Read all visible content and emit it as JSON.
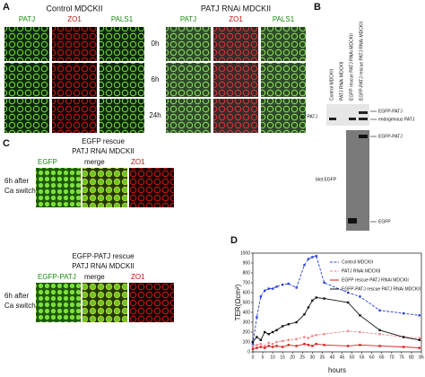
{
  "panel_a": {
    "label": "A",
    "groups": [
      {
        "title": "Control MDCKII",
        "columns": [
          "PATJ",
          "ZO1",
          "PALS1"
        ]
      },
      {
        "title": "PATJ RNAi MDCKII",
        "columns": [
          "PATJ",
          "ZO1",
          "PALS1"
        ]
      }
    ],
    "rows": [
      "0h",
      "6h",
      "24h"
    ]
  },
  "panel_b": {
    "label": "B",
    "lanes": [
      "Control MDCKII",
      "PATJ RNAi MDCKII",
      "EGFP rescue PATJ RNAi MDCKII",
      "EGFP-PATJ rescue PATJ RNAi MDCKII"
    ],
    "blots": [
      {
        "label": "blot:PATJ",
        "bands": [
          "EGFP-PATJ",
          "endogenous PATJ"
        ]
      },
      {
        "label": "blot:EGFP",
        "bands": [
          "EGFP-PATJ",
          "EGFP"
        ]
      }
    ]
  },
  "panel_c": {
    "label": "C",
    "subpanels": [
      {
        "title": [
          "EGFP rescue",
          "PATJ RNAi MDCKII"
        ],
        "condition": [
          "6h after",
          "Ca switch"
        ],
        "columns": [
          "EGFP",
          "merge",
          "ZO1"
        ]
      },
      {
        "title": [
          "EGFP-PATJ rescue",
          "PATJ RNAi MDCKII"
        ],
        "condition": [
          "6h after",
          "Ca switch"
        ],
        "columns": [
          "EGFP-PATJ",
          "merge",
          "ZO1"
        ]
      }
    ]
  },
  "chart_data": {
    "type": "line",
    "label": "D",
    "x_label": "hours",
    "y_label": "TER(Ωcm²)",
    "x": [
      0,
      2,
      4,
      6,
      8,
      10,
      12,
      15,
      18,
      22,
      26,
      28,
      30,
      32,
      36,
      48,
      54,
      64,
      76,
      84
    ],
    "xlim": [
      0,
      85
    ],
    "xticks": [
      0,
      5,
      10,
      15,
      20,
      25,
      30,
      35,
      40,
      45,
      50,
      55,
      60,
      65,
      70,
      75,
      80,
      85
    ],
    "ylim": [
      0,
      1000
    ],
    "yticks": [
      0,
      100,
      200,
      300,
      400,
      500,
      600,
      700,
      800,
      900,
      1000
    ],
    "series": [
      {
        "name": "Control MDCKII",
        "color": "#2a3fd6",
        "dash": true,
        "values": [
          80,
          350,
          560,
          620,
          640,
          640,
          660,
          680,
          690,
          650,
          880,
          940,
          960,
          970,
          700,
          600,
          560,
          420,
          390,
          370
        ]
      },
      {
        "name": "PATJ RNAi MDCKII",
        "color": "#f08a8a",
        "dash": true,
        "values": [
          60,
          70,
          80,
          60,
          90,
          80,
          100,
          110,
          120,
          130,
          150,
          140,
          160,
          170,
          180,
          210,
          200,
          180,
          150,
          140
        ]
      },
      {
        "name": "EGFP rescue PATJ RNAi MDCKII",
        "color": "#d42020",
        "dash": false,
        "values": [
          30,
          40,
          50,
          40,
          60,
          50,
          60,
          50,
          70,
          60,
          80,
          70,
          60,
          80,
          70,
          60,
          70,
          60,
          50,
          40
        ]
      },
      {
        "name": "EGFP-PATJ rescue PATJ RNAi MDCKII",
        "color": "#111111",
        "dash": false,
        "values": [
          100,
          150,
          120,
          200,
          180,
          200,
          220,
          260,
          280,
          300,
          380,
          450,
          520,
          550,
          540,
          500,
          370,
          220,
          150,
          120
        ]
      }
    ]
  }
}
